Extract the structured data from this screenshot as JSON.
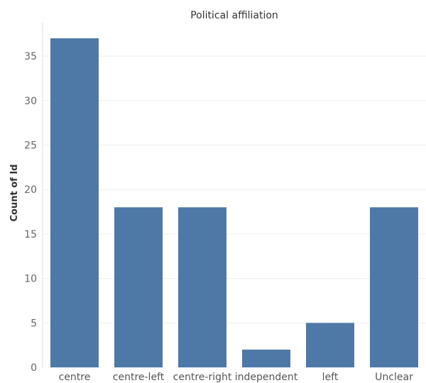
{
  "chart_data": {
    "type": "bar",
    "title": "Political affiliation",
    "xlabel": "",
    "ylabel": "Count of Id",
    "categories": [
      "centre",
      "centre-left",
      "centre-right",
      "independent",
      "left",
      "Unclear"
    ],
    "values": [
      37,
      18,
      18,
      2,
      5,
      18
    ],
    "ylim": [
      0,
      38
    ],
    "yticks": [
      0,
      5,
      10,
      15,
      20,
      25,
      30,
      35
    ],
    "grid": true,
    "bar_color": "#4e79a7"
  }
}
